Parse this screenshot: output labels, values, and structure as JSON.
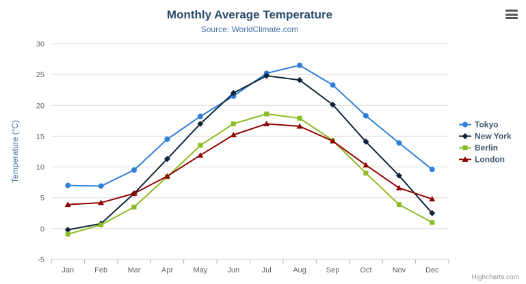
{
  "credits": "Highcharts.com",
  "chart_data": {
    "type": "line",
    "title": "Monthly Average Temperature",
    "subtitle": "Source: WorldClimate.com",
    "ylabel": "Temperature (°C)",
    "xlabel": "",
    "ylim": [
      -5,
      30
    ],
    "ytick_interval": 5,
    "grid": true,
    "legend_position": "right",
    "categories": [
      "Jan",
      "Feb",
      "Mar",
      "Apr",
      "May",
      "Jun",
      "Jul",
      "Aug",
      "Sep",
      "Oct",
      "Nov",
      "Dec"
    ],
    "series": [
      {
        "name": "Tokyo",
        "color": "#2f7ed8",
        "marker": "circle",
        "values": [
          7.0,
          6.9,
          9.5,
          14.5,
          18.2,
          21.5,
          25.2,
          26.5,
          23.3,
          18.3,
          13.9,
          9.6
        ]
      },
      {
        "name": "New York",
        "color": "#0d233a",
        "marker": "diamond",
        "values": [
          -0.2,
          0.8,
          5.7,
          11.3,
          17.0,
          22.0,
          24.8,
          24.1,
          20.1,
          14.1,
          8.6,
          2.5
        ]
      },
      {
        "name": "Berlin",
        "color": "#8bbc21",
        "marker": "square",
        "values": [
          -0.9,
          0.6,
          3.5,
          8.4,
          13.5,
          17.0,
          18.6,
          17.9,
          14.3,
          9.0,
          3.9,
          1.0
        ]
      },
      {
        "name": "London",
        "color": "#910000",
        "marker": "triangle",
        "values": [
          3.9,
          4.2,
          5.7,
          8.5,
          11.9,
          15.2,
          17.0,
          16.6,
          14.2,
          10.3,
          6.6,
          4.8
        ]
      }
    ]
  }
}
